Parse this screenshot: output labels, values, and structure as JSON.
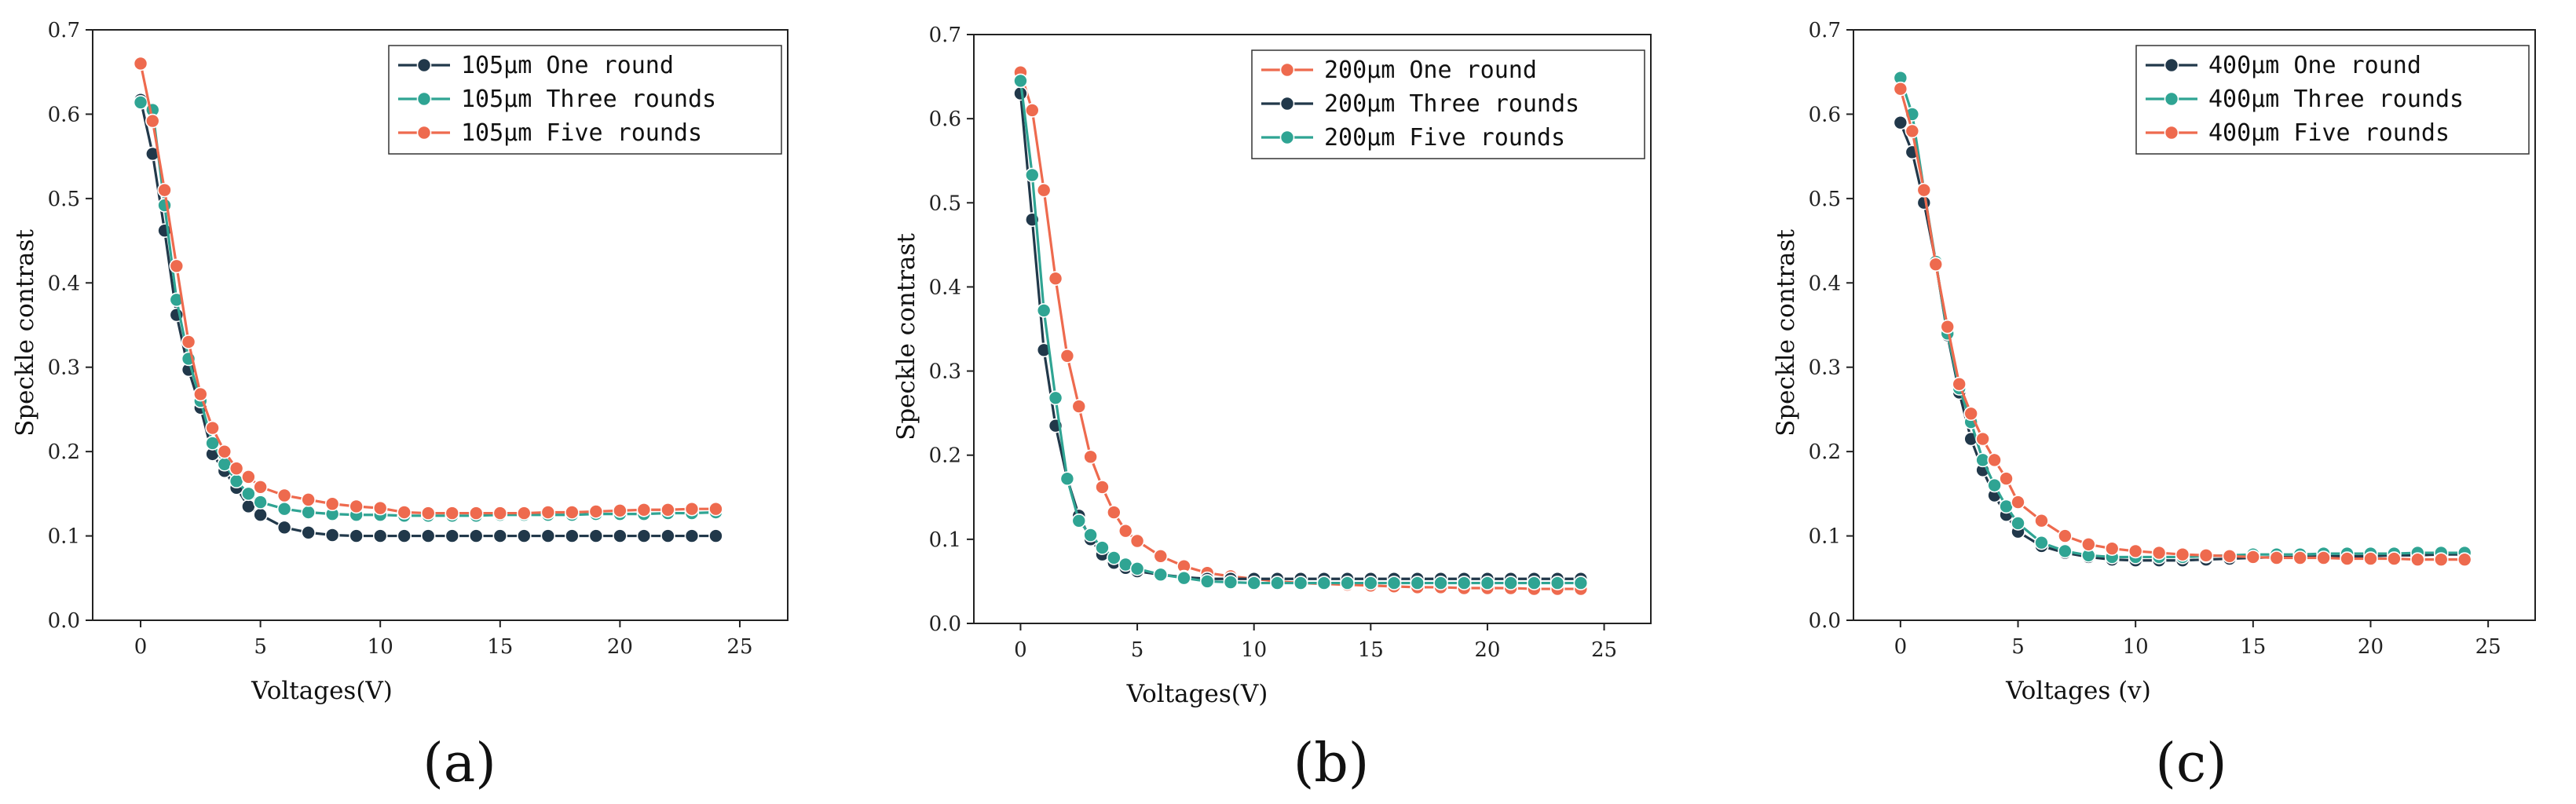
{
  "colors": {
    "dark": "#21384a",
    "teal": "#2fa493",
    "orange": "#ee6a4e"
  },
  "chart_data": [
    {
      "type": "line",
      "panel_label": "(a)",
      "xlabel": "Voltages(V)",
      "ylabel": "Speckle contrast",
      "xlim": [
        -2,
        27
      ],
      "ylim": [
        0,
        0.7
      ],
      "xticks": [
        "0",
        "5",
        "10",
        "15",
        "20",
        "25"
      ],
      "yticks": [
        "0.0",
        "0.1",
        "0.2",
        "0.3",
        "0.4",
        "0.5",
        "0.6",
        "0.7"
      ],
      "legend_position": "top-right",
      "x": [
        0,
        0.5,
        1,
        1.5,
        2,
        2.5,
        3,
        3.5,
        4,
        4.5,
        5,
        6,
        7,
        8,
        9,
        10,
        11,
        12,
        13,
        14,
        15,
        16,
        17,
        18,
        19,
        20,
        21,
        22,
        23,
        24
      ],
      "series": [
        {
          "name": "105μm One round",
          "color": "dark",
          "values": [
            0.617,
            0.553,
            0.462,
            0.362,
            0.297,
            0.252,
            0.197,
            0.177,
            0.157,
            0.135,
            0.125,
            0.11,
            0.104,
            0.101,
            0.1,
            0.1,
            0.1,
            0.1,
            0.1,
            0.1,
            0.1,
            0.1,
            0.1,
            0.1,
            0.1,
            0.1,
            0.1,
            0.1,
            0.1,
            0.1
          ]
        },
        {
          "name": "105μm Three rounds",
          "color": "teal",
          "values": [
            0.614,
            0.605,
            0.492,
            0.38,
            0.31,
            0.26,
            0.21,
            0.185,
            0.165,
            0.15,
            0.14,
            0.132,
            0.128,
            0.126,
            0.125,
            0.125,
            0.124,
            0.124,
            0.124,
            0.124,
            0.125,
            0.125,
            0.125,
            0.125,
            0.126,
            0.126,
            0.126,
            0.127,
            0.127,
            0.128
          ]
        },
        {
          "name": "105μm Five rounds",
          "color": "orange",
          "values": [
            0.66,
            0.592,
            0.51,
            0.42,
            0.33,
            0.268,
            0.228,
            0.2,
            0.18,
            0.17,
            0.158,
            0.148,
            0.143,
            0.138,
            0.135,
            0.133,
            0.128,
            0.127,
            0.127,
            0.127,
            0.127,
            0.127,
            0.128,
            0.128,
            0.129,
            0.13,
            0.131,
            0.131,
            0.132,
            0.132
          ]
        }
      ]
    },
    {
      "type": "line",
      "panel_label": "(b)",
      "xlabel": "Voltages(V)",
      "ylabel": "Speckle contrast",
      "xlim": [
        -2,
        27
      ],
      "ylim": [
        0,
        0.7
      ],
      "xticks": [
        "0",
        "5",
        "10",
        "15",
        "20",
        "25"
      ],
      "yticks": [
        "0.0",
        "0.1",
        "0.2",
        "0.3",
        "0.4",
        "0.5",
        "0.6",
        "0.7"
      ],
      "legend_position": "top-right",
      "x": [
        0,
        0.5,
        1,
        1.5,
        2,
        2.5,
        3,
        3.5,
        4,
        4.5,
        5,
        6,
        7,
        8,
        9,
        10,
        11,
        12,
        13,
        14,
        15,
        16,
        17,
        18,
        19,
        20,
        21,
        22,
        23,
        24
      ],
      "series": [
        {
          "name": "200μm One round",
          "color": "orange",
          "values": [
            0.655,
            0.61,
            0.515,
            0.41,
            0.318,
            0.258,
            0.198,
            0.162,
            0.132,
            0.11,
            0.098,
            0.08,
            0.068,
            0.06,
            0.056,
            0.053,
            0.05,
            0.048,
            0.047,
            0.046,
            0.045,
            0.044,
            0.043,
            0.043,
            0.042,
            0.042,
            0.042,
            0.041,
            0.041,
            0.041
          ]
        },
        {
          "name": "200μm Three rounds",
          "color": "dark",
          "values": [
            0.63,
            0.48,
            0.325,
            0.235,
            0.172,
            0.128,
            0.1,
            0.082,
            0.072,
            0.066,
            0.062,
            0.058,
            0.055,
            0.053,
            0.053,
            0.053,
            0.053,
            0.053,
            0.053,
            0.053,
            0.053,
            0.053,
            0.053,
            0.053,
            0.053,
            0.053,
            0.053,
            0.053,
            0.053,
            0.053
          ]
        },
        {
          "name": "200μm Five rounds",
          "color": "teal",
          "values": [
            0.645,
            0.533,
            0.372,
            0.268,
            0.172,
            0.122,
            0.105,
            0.09,
            0.078,
            0.07,
            0.065,
            0.058,
            0.054,
            0.05,
            0.049,
            0.048,
            0.048,
            0.048,
            0.048,
            0.048,
            0.048,
            0.048,
            0.048,
            0.048,
            0.048,
            0.048,
            0.048,
            0.048,
            0.048,
            0.048
          ]
        }
      ]
    },
    {
      "type": "line",
      "panel_label": "(c)",
      "xlabel": "Voltages (v)",
      "ylabel": "Speckle contrast",
      "xlim": [
        -2,
        27
      ],
      "ylim": [
        0,
        0.7
      ],
      "xticks": [
        "0",
        "5",
        "10",
        "15",
        "20",
        "25"
      ],
      "yticks": [
        "0.0",
        "0.1",
        "0.2",
        "0.3",
        "0.4",
        "0.5",
        "0.6",
        "0.7"
      ],
      "legend_position": "top-right",
      "x": [
        0,
        0.5,
        1,
        1.5,
        2,
        2.5,
        3,
        3.5,
        4,
        4.5,
        5,
        6,
        7,
        8,
        9,
        10,
        11,
        12,
        13,
        14,
        15,
        16,
        17,
        18,
        19,
        20,
        21,
        22,
        23,
        24
      ],
      "series": [
        {
          "name": "400μm One round",
          "color": "dark",
          "values": [
            0.59,
            0.555,
            0.495,
            0.425,
            0.338,
            0.27,
            0.215,
            0.178,
            0.148,
            0.125,
            0.105,
            0.088,
            0.08,
            0.075,
            0.072,
            0.071,
            0.071,
            0.071,
            0.072,
            0.073,
            0.074,
            0.075,
            0.075,
            0.076,
            0.076,
            0.076,
            0.077,
            0.077,
            0.078,
            0.078
          ]
        },
        {
          "name": "400μm Three rounds",
          "color": "teal",
          "values": [
            0.643,
            0.6,
            0.51,
            0.425,
            0.34,
            0.275,
            0.235,
            0.19,
            0.16,
            0.135,
            0.115,
            0.092,
            0.082,
            0.077,
            0.075,
            0.075,
            0.075,
            0.075,
            0.076,
            0.077,
            0.078,
            0.078,
            0.078,
            0.079,
            0.079,
            0.079,
            0.079,
            0.08,
            0.08,
            0.08
          ]
        },
        {
          "name": "400μm Five rounds",
          "color": "orange",
          "values": [
            0.63,
            0.58,
            0.51,
            0.422,
            0.348,
            0.28,
            0.245,
            0.215,
            0.19,
            0.168,
            0.14,
            0.118,
            0.1,
            0.09,
            0.085,
            0.082,
            0.08,
            0.078,
            0.077,
            0.076,
            0.075,
            0.074,
            0.074,
            0.074,
            0.073,
            0.073,
            0.073,
            0.072,
            0.072,
            0.072
          ]
        }
      ]
    }
  ]
}
